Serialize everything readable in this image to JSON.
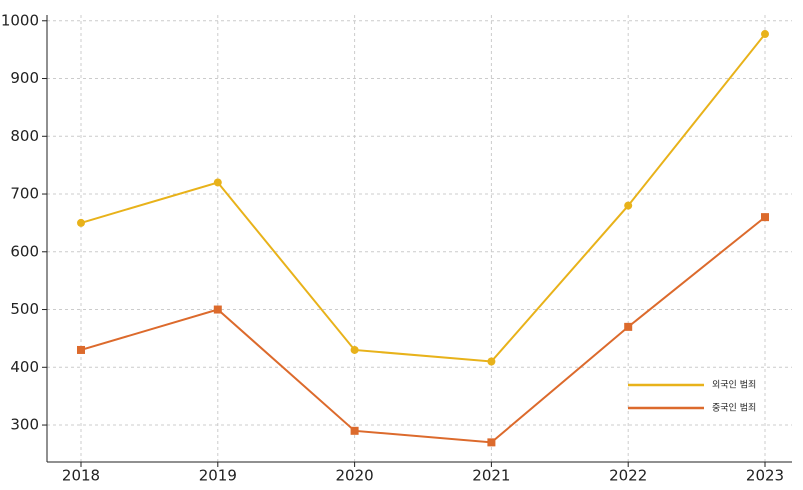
{
  "chart_data": {
    "type": "line",
    "categories": [
      "2018",
      "2019",
      "2020",
      "2021",
      "2022",
      "2023"
    ],
    "series": [
      {
        "name": "외국인 범죄",
        "color": "#e8b21a",
        "marker": "circle",
        "values": [
          650,
          720,
          430,
          410,
          680,
          977
        ]
      },
      {
        "name": "중국인 범죄",
        "color": "#dc6a2c",
        "marker": "square",
        "values": [
          430,
          500,
          290,
          270,
          470,
          660
        ]
      }
    ],
    "ylim": [
      236,
      1010
    ],
    "yticks": [
      300,
      400,
      500,
      600,
      700,
      800,
      900,
      1000
    ],
    "grid": true,
    "legend": "lower right"
  }
}
